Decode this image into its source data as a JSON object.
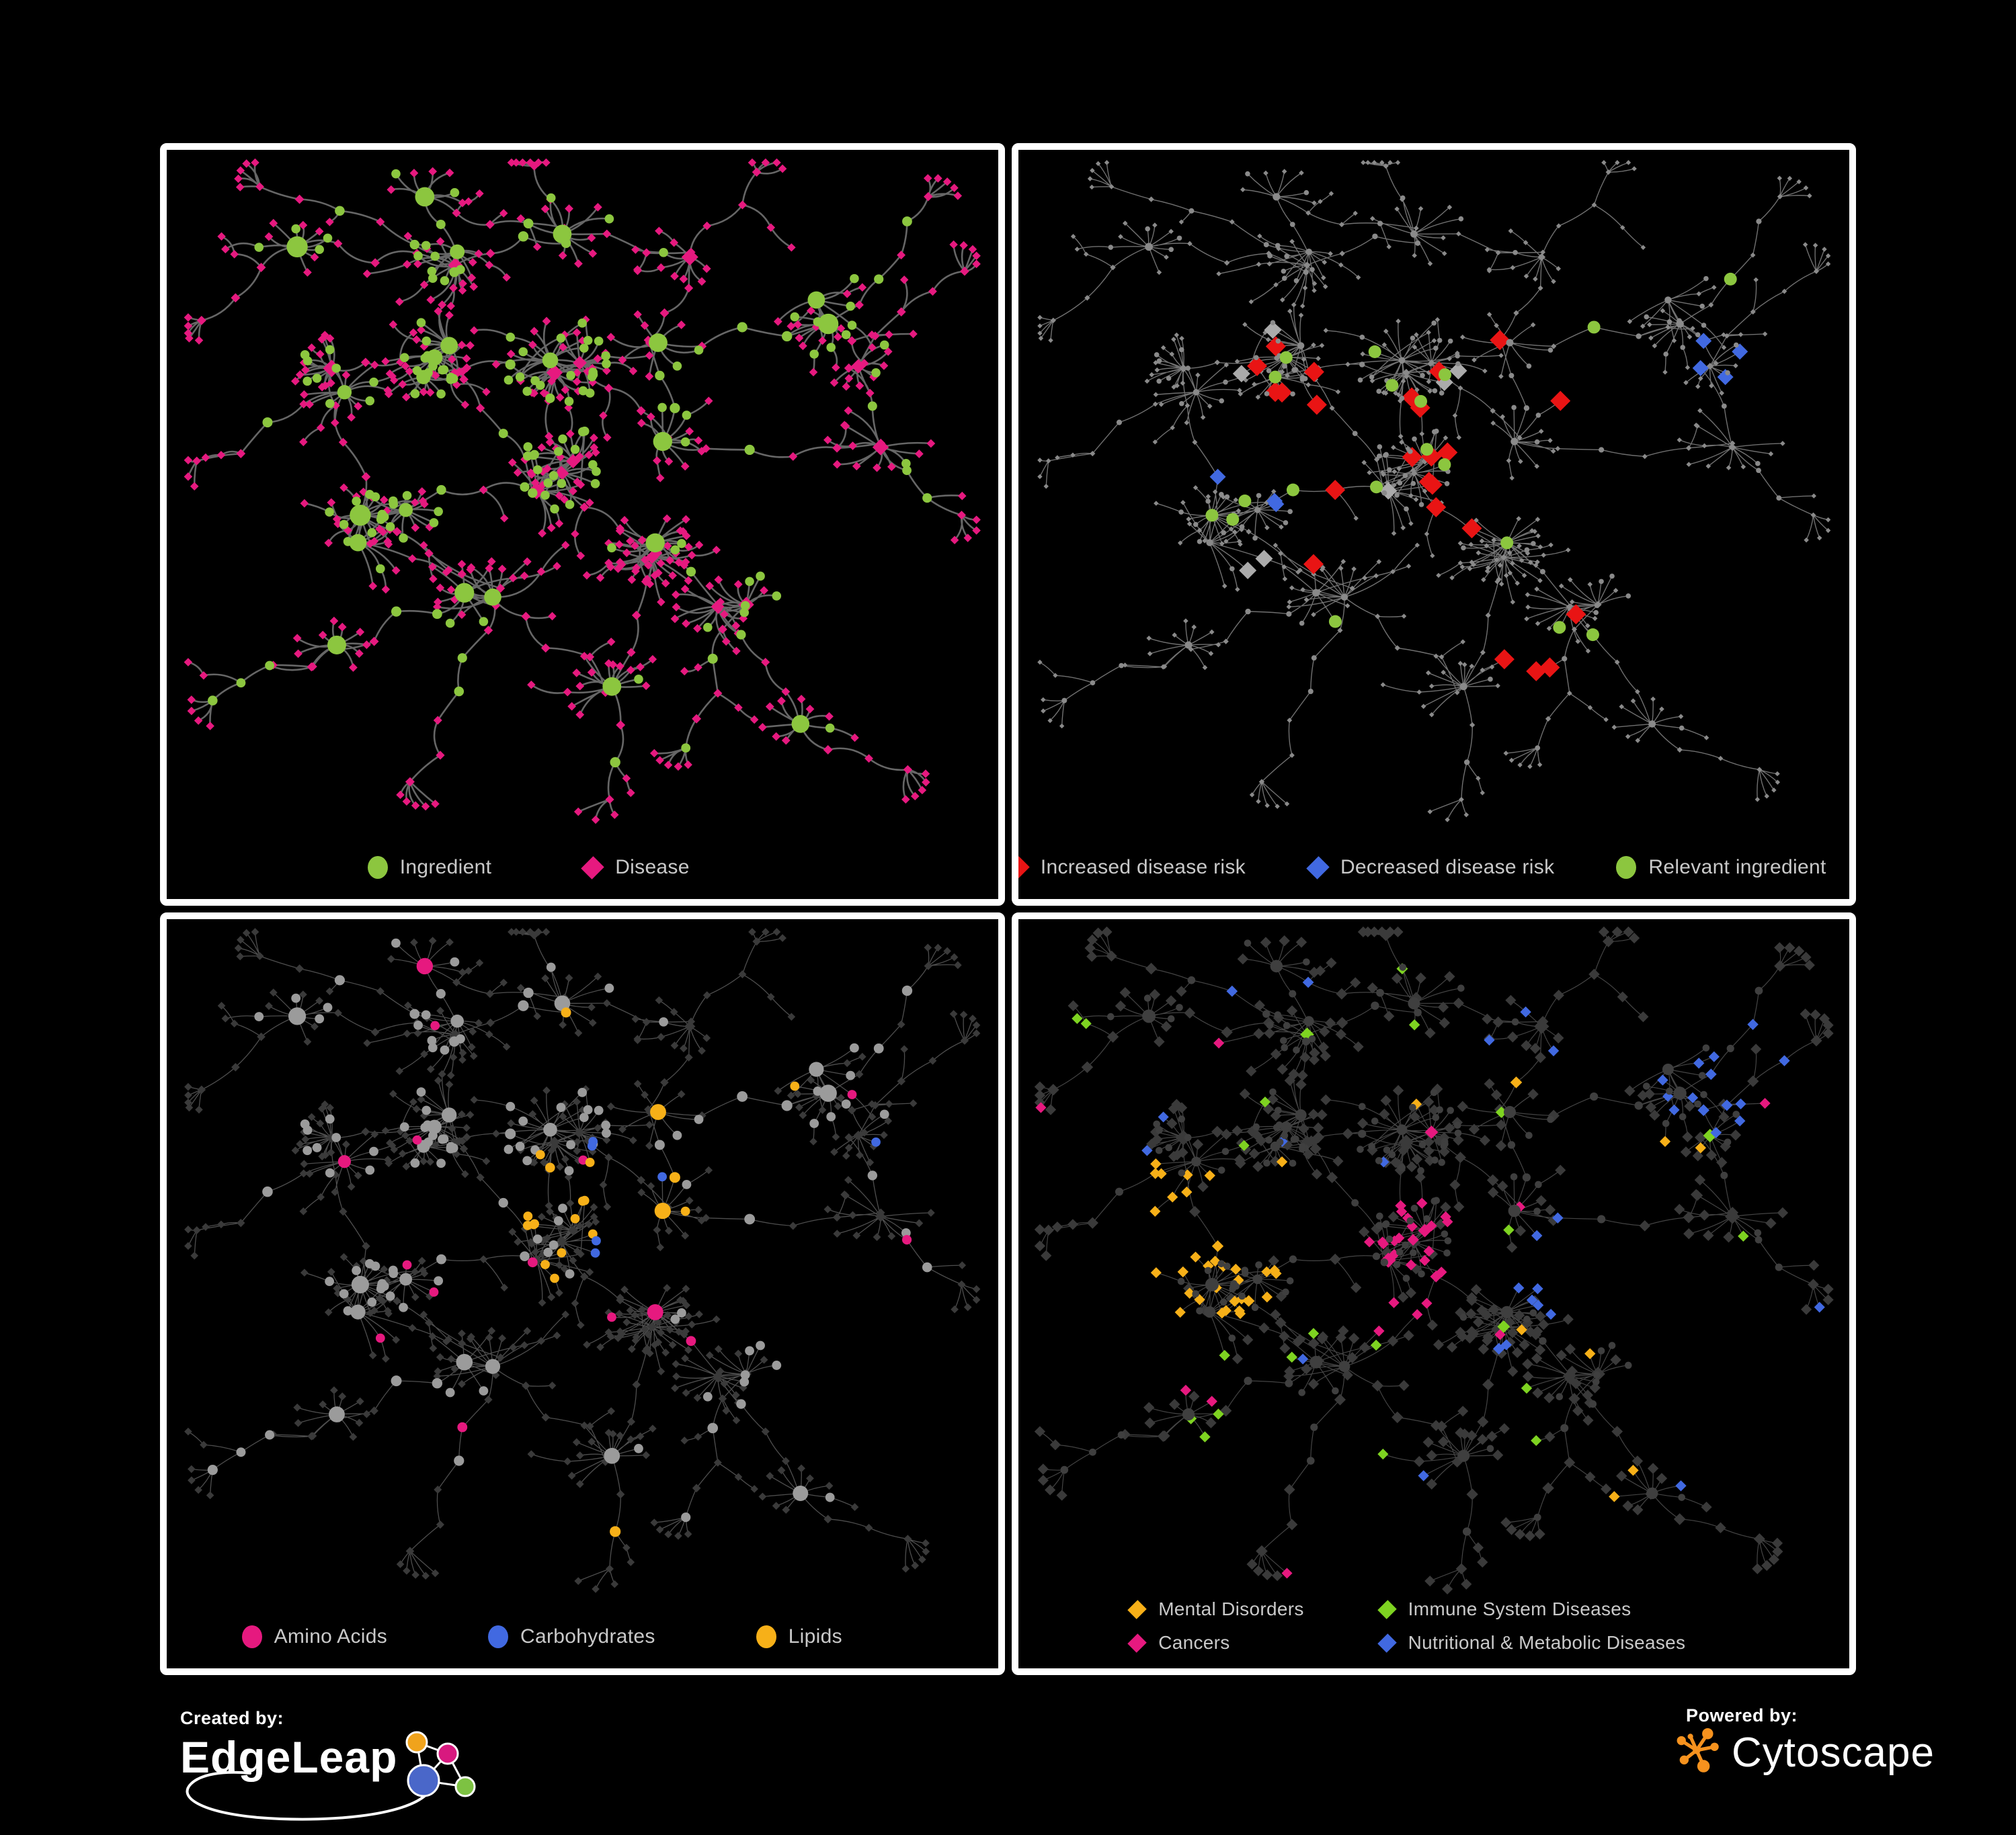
{
  "branding": {
    "created_by": {
      "label": "Created by:",
      "name": "EdgeLeap"
    },
    "powered_by": {
      "label": "Powered by:",
      "name": "Cytoscape"
    }
  },
  "colors": {
    "background": "#000000",
    "panel_border": "#ffffff",
    "legend_text": "#c9c9c9",
    "ingredient_green": "#8cc63f",
    "disease_pink": "#e6197f",
    "risk_red": "#e91414",
    "link_blue": "#4169e1",
    "neutral_gray": "#ababab",
    "node_gray": "#9b9b9b",
    "dark_node": "#3a3a3a",
    "lipid_orange": "#f7b018",
    "immune_green": "#7ed321",
    "edge_gray_bold": "#6f6f6f",
    "edge_gray": "#8f8f8f",
    "edge_gray_light": "#9c9c9c",
    "cytoscape_orange": "#f6921e"
  },
  "panels": [
    {
      "id": "ingredient-disease",
      "legend": [
        {
          "label": "Ingredient",
          "shape": "circle",
          "color": "#8cc63f"
        },
        {
          "label": "Disease",
          "shape": "diamond",
          "color": "#e6197f"
        }
      ]
    },
    {
      "id": "disease-risk",
      "legend": [
        {
          "label": "Increased disease risk",
          "shape": "diamond",
          "color": "#e91414"
        },
        {
          "label": "Decreased disease risk",
          "shape": "diamond",
          "color": "#4169e1"
        },
        {
          "label": "Relevant ingredient",
          "shape": "circle",
          "color": "#8cc63f"
        }
      ]
    },
    {
      "id": "nutrient-classes",
      "legend": [
        {
          "label": "Amino Acids",
          "shape": "circle",
          "color": "#e6197f"
        },
        {
          "label": "Carbohydrates",
          "shape": "circle",
          "color": "#4169e1"
        },
        {
          "label": "Lipids",
          "shape": "circle",
          "color": "#f7b018"
        }
      ]
    },
    {
      "id": "disease-classes",
      "legend": [
        {
          "label": "Mental Disorders",
          "shape": "diamond",
          "color": "#f7b018"
        },
        {
          "label": "Immune System Diseases",
          "shape": "diamond",
          "color": "#7ed321"
        },
        {
          "label": "Cancers",
          "shape": "diamond",
          "color": "#e6197f"
        },
        {
          "label": "Nutritional & Metabolic Diseases",
          "shape": "diamond",
          "color": "#4169e1"
        }
      ]
    }
  ],
  "network": {
    "seed": 11,
    "highlight_seed": 777,
    "clusters": [
      [
        0.3,
        0.05,
        1,
        4,
        7,
        0.2
      ],
      [
        0.15,
        0.16,
        1,
        6,
        10,
        0.22
      ],
      [
        0.33,
        0.15,
        2,
        6,
        12,
        0.25
      ],
      [
        0.5,
        0.12,
        1,
        6,
        10,
        0.22
      ],
      [
        0.64,
        0.12,
        1,
        7,
        12,
        0.22
      ],
      [
        0.8,
        0.22,
        2,
        8,
        14,
        0.25
      ],
      [
        0.2,
        0.34,
        2,
        9,
        16,
        0.3
      ],
      [
        0.33,
        0.3,
        3,
        10,
        18,
        0.4
      ],
      [
        0.47,
        0.3,
        3,
        11,
        20,
        0.5
      ],
      [
        0.25,
        0.55,
        3,
        10,
        18,
        0.4
      ],
      [
        0.47,
        0.47,
        3,
        12,
        20,
        0.5
      ],
      [
        0.6,
        0.4,
        1,
        8,
        14,
        0.25
      ],
      [
        0.57,
        0.57,
        2,
        13,
        24,
        0.15
      ],
      [
        0.36,
        0.68,
        2,
        8,
        15,
        0.22
      ],
      [
        0.17,
        0.72,
        1,
        6,
        10,
        0.22
      ],
      [
        0.52,
        0.8,
        1,
        12,
        20,
        0.1
      ],
      [
        0.7,
        0.68,
        2,
        8,
        13,
        0.25
      ],
      [
        0.85,
        0.45,
        1,
        6,
        10,
        0.25
      ],
      [
        0.88,
        0.3,
        1,
        8,
        13,
        0.3
      ],
      [
        0.75,
        0.83,
        1,
        7,
        11,
        0.2
      ],
      [
        0.62,
        0.25,
        1,
        6,
        10,
        0.25
      ]
    ],
    "links": [
      [
        1,
        2
      ],
      [
        2,
        3
      ],
      [
        3,
        4
      ],
      [
        4,
        20
      ],
      [
        20,
        5
      ],
      [
        5,
        18
      ],
      [
        2,
        7
      ],
      [
        6,
        7
      ],
      [
        7,
        8
      ],
      [
        8,
        10
      ],
      [
        8,
        11
      ],
      [
        11,
        20
      ],
      [
        6,
        9
      ],
      [
        9,
        10
      ],
      [
        9,
        13
      ],
      [
        10,
        12
      ],
      [
        12,
        16
      ],
      [
        13,
        14
      ],
      [
        13,
        15
      ],
      [
        15,
        12
      ],
      [
        16,
        19
      ],
      [
        17,
        18
      ],
      [
        11,
        17
      ],
      [
        7,
        10
      ],
      [
        0,
        3
      ],
      [
        0,
        2
      ]
    ],
    "tendrils": [
      [
        2,
        0.1,
        0.03
      ],
      [
        3,
        0.44,
        0.01
      ],
      [
        4,
        0.72,
        0.02
      ],
      [
        1,
        0.02,
        0.24
      ],
      [
        6,
        0.02,
        0.46
      ],
      [
        14,
        0.04,
        0.82
      ],
      [
        13,
        0.3,
        0.94
      ],
      [
        15,
        0.52,
        0.96
      ],
      [
        19,
        0.9,
        0.93
      ],
      [
        18,
        0.97,
        0.16
      ],
      [
        17,
        0.97,
        0.54
      ],
      [
        5,
        0.94,
        0.06
      ],
      [
        16,
        0.62,
        0.88
      ]
    ]
  }
}
